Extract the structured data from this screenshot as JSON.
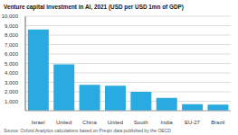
{
  "chart_data": {
    "type": "bar",
    "title": "Venture capital investment in AI, 2021 (USD per USD 1mn of GDP)",
    "categories": [
      "Israel",
      "United\nStates",
      "China",
      "United\nKingdom",
      "South\nKorea",
      "India",
      "EU-27",
      "Brazil"
    ],
    "values": [
      8600,
      4900,
      2750,
      2650,
      2000,
      1350,
      700,
      650
    ],
    "color": "#29abe2",
    "ylim": [
      0,
      10000
    ],
    "yticks": [
      {
        "value": 1000,
        "label": "1,000"
      },
      {
        "value": 2000,
        "label": "2,000"
      },
      {
        "value": 3000,
        "label": "3,000"
      },
      {
        "value": 4000,
        "label": "4,000"
      },
      {
        "value": 5000,
        "label": "5,000"
      },
      {
        "value": 6000,
        "label": "6,000"
      },
      {
        "value": 7000,
        "label": "7,000"
      },
      {
        "value": 8000,
        "label": "8,000"
      },
      {
        "value": 9000,
        "label": "9,000"
      },
      {
        "value": 10000,
        "label": "10,000"
      }
    ],
    "grid": true,
    "annotations": [
      "Source: Oxford Analytics calculations based on Preqin data published by the OECD"
    ]
  }
}
